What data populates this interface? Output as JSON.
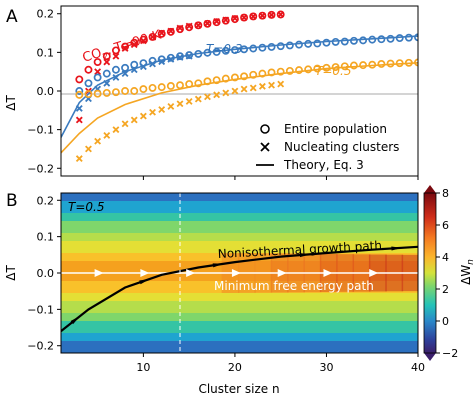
{
  "panels": {
    "a_label": "A",
    "b_label": "B"
  },
  "chart_data": [
    {
      "panel": "A",
      "type": "scatter",
      "ylabel": "ΔT",
      "xlim": [
        1,
        40
      ],
      "ylim": [
        -0.22,
        0.22
      ],
      "yticks": [
        "−0.2",
        "−0.1",
        "0.0",
        "0.1",
        "0.2"
      ],
      "yticks_values": [
        -0.2,
        -0.1,
        0.0,
        0.1,
        0.2
      ],
      "grid": false,
      "legend_position": "lower-right",
      "legend": [
        {
          "marker": "circle",
          "label": "Entire population"
        },
        {
          "marker": "cross",
          "label": "Nucleating clusters"
        },
        {
          "marker": "line",
          "label": "Theory, Eq. 3"
        }
      ],
      "annotations": [
        {
          "text": "CO",
          "sub": "2",
          "text2": ", T=90 K",
          "color": "#e8141b"
        },
        {
          "text": "T=0.3",
          "color": "#2e6fb5"
        },
        {
          "text": "T=0.5",
          "color": "#f2a11f"
        }
      ],
      "series": [
        {
          "color": "#e8141b",
          "circles": {
            "x": [
              3,
              4,
              5,
              6,
              7,
              8,
              9,
              10,
              11,
              12,
              13,
              14,
              15,
              16,
              17,
              18,
              19,
              20,
              21,
              22,
              23,
              24,
              25
            ],
            "y": [
              0.03,
              0.055,
              0.075,
              0.09,
              0.105,
              0.115,
              0.125,
              0.133,
              0.14,
              0.148,
              0.153,
              0.16,
              0.165,
              0.17,
              0.174,
              0.178,
              0.182,
              0.186,
              0.19,
              0.193,
              0.195,
              0.197,
              0.198
            ]
          },
          "crosses": {
            "x": [
              3,
              4,
              5,
              6,
              7,
              8,
              9,
              10,
              11,
              12,
              13,
              14,
              15,
              16,
              17,
              18,
              19,
              20,
              21,
              22,
              23,
              24,
              25
            ],
            "y": [
              -0.075,
              0.0,
              0.05,
              0.075,
              0.09,
              0.11,
              0.12,
              0.13,
              0.14,
              0.15,
              0.155,
              0.163,
              0.168,
              0.17,
              0.175,
              0.18,
              0.184,
              0.188,
              0.19,
              0.193,
              0.195,
              0.197,
              0.198
            ]
          }
        },
        {
          "color": "#3b7bbf",
          "theory": {
            "x": [
              1,
              3,
              5,
              8,
              12,
              16,
              20,
              25,
              30,
              35,
              40
            ],
            "y": [
              -0.12,
              -0.03,
              0.015,
              0.05,
              0.08,
              0.097,
              0.108,
              0.119,
              0.128,
              0.135,
              0.142
            ]
          },
          "circles": {
            "x": [
              3,
              4,
              5,
              6,
              7,
              8,
              9,
              10,
              11,
              12,
              13,
              14,
              15,
              16,
              17,
              18,
              19,
              20,
              21,
              22,
              23,
              24,
              25,
              26,
              27,
              28,
              29,
              30,
              31,
              32,
              33,
              34,
              35,
              36,
              37,
              38,
              39,
              40
            ],
            "y": [
              0.0,
              0.02,
              0.035,
              0.045,
              0.055,
              0.06,
              0.068,
              0.072,
              0.078,
              0.082,
              0.086,
              0.09,
              0.093,
              0.096,
              0.099,
              0.101,
              0.104,
              0.106,
              0.108,
              0.11,
              0.112,
              0.114,
              0.116,
              0.118,
              0.12,
              0.122,
              0.123,
              0.125,
              0.127,
              0.128,
              0.13,
              0.131,
              0.133,
              0.134,
              0.135,
              0.137,
              0.138,
              0.139
            ]
          },
          "crosses": {
            "x": [
              3,
              4,
              5,
              6,
              7,
              8,
              9,
              10,
              11,
              12,
              13,
              14,
              15
            ],
            "y": [
              -0.045,
              -0.02,
              0.005,
              0.02,
              0.035,
              0.045,
              0.055,
              0.063,
              0.07,
              0.076,
              0.082,
              0.087,
              0.09
            ]
          }
        },
        {
          "color": "#f5a623",
          "theory": {
            "x": [
              1,
              3,
              5,
              8,
              12,
              16,
              20,
              25,
              30,
              35,
              40
            ],
            "y": [
              -0.16,
              -0.11,
              -0.07,
              -0.035,
              -0.005,
              0.015,
              0.03,
              0.045,
              0.058,
              0.066,
              0.073
            ]
          },
          "circles": {
            "x": [
              3,
              4,
              5,
              6,
              7,
              8,
              9,
              10,
              11,
              12,
              13,
              14,
              15,
              16,
              17,
              18,
              19,
              20,
              21,
              22,
              23,
              24,
              25,
              26,
              27,
              28,
              29,
              30,
              31,
              32,
              33,
              34,
              35,
              36,
              37,
              38,
              39,
              40
            ],
            "y": [
              -0.01,
              -0.008,
              -0.007,
              -0.005,
              -0.003,
              0.0,
              0.0,
              0.005,
              0.008,
              0.01,
              0.013,
              0.015,
              0.018,
              0.02,
              0.025,
              0.028,
              0.032,
              0.035,
              0.038,
              0.042,
              0.045,
              0.048,
              0.05,
              0.052,
              0.054,
              0.056,
              0.058,
              0.06,
              0.062,
              0.064,
              0.066,
              0.067,
              0.068,
              0.07,
              0.071,
              0.072,
              0.073,
              0.074
            ]
          },
          "crosses": {
            "x": [
              3,
              4,
              5,
              6,
              7,
              8,
              9,
              10,
              11,
              12,
              13,
              14,
              15,
              16,
              17,
              18,
              19,
              20,
              21,
              22,
              23,
              24,
              25
            ],
            "y": [
              -0.175,
              -0.15,
              -0.13,
              -0.115,
              -0.1,
              -0.085,
              -0.075,
              -0.065,
              -0.055,
              -0.048,
              -0.04,
              -0.033,
              -0.027,
              -0.021,
              -0.015,
              -0.01,
              -0.005,
              0.0,
              0.005,
              0.008,
              0.012,
              0.015,
              0.018
            ]
          }
        }
      ]
    },
    {
      "panel": "B",
      "type": "heatmap",
      "xlabel": "Cluster size n",
      "ylabel": "ΔT",
      "xlim": [
        1,
        40
      ],
      "ylim": [
        -0.22,
        0.22
      ],
      "xticks": [
        "10",
        "20",
        "30",
        "40"
      ],
      "xticks_values": [
        10,
        20,
        30,
        40
      ],
      "yticks": [
        "−0.2",
        "−0.1",
        "0.0",
        "0.1",
        "0.2"
      ],
      "yticks_values": [
        -0.2,
        -0.1,
        0.0,
        0.1,
        0.2
      ],
      "colorbar_label": "ΔW",
      "colorbar_label_sub": "n",
      "colorbar_range": [
        -2,
        8
      ],
      "colorbar_ticks": [
        "−2",
        "0",
        "2",
        "4",
        "6",
        "8"
      ],
      "colorbar_ticks_values": [
        -2,
        0,
        2,
        4,
        6,
        8
      ],
      "temperature_label": "T=0.5",
      "critical_size_line_x": 14,
      "paths": [
        {
          "name": "Nonisothermal growth path",
          "color": "#000000",
          "x": [
            1,
            4,
            8,
            12,
            16,
            20,
            25,
            30,
            35,
            40
          ],
          "y": [
            -0.16,
            -0.1,
            -0.04,
            -0.005,
            0.015,
            0.03,
            0.045,
            0.055,
            0.064,
            0.072
          ]
        },
        {
          "name": "Minimum free energy path",
          "color": "#ffffff",
          "x": [
            1,
            40
          ],
          "y": [
            0.0,
            0.0
          ]
        }
      ]
    }
  ]
}
